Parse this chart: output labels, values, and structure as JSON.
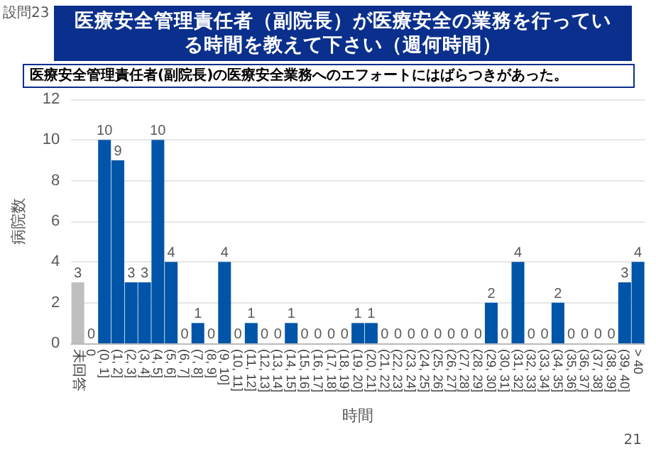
{
  "chart_data": {
    "type": "bar",
    "title": "医療安全管理責任者（副院長）が医療安全の業務を行っている時間を教えて下さい（週何時間）",
    "subtitle": "医療安全管理責任者(副院長)の医療安全業務へのエフォートにはばらつきがあった。",
    "xlabel": "時間",
    "ylabel": "病院数",
    "annotations": [
      "設問23",
      "21"
    ],
    "categories": [
      "未回答",
      "0",
      "(0, 1]",
      "(1, 2]",
      "(2, 3]",
      "(3, 4]",
      "(4, 5]",
      "(5, 6]",
      "(6, 7]",
      "(7, 8]",
      "(8, 9]",
      "(9, 10]",
      "(10, 11]",
      "(11, 12]",
      "(12, 13]",
      "(13, 14]",
      "(14, 15]",
      "(15, 16]",
      "(16, 17]",
      "(17, 18]",
      "(18, 19]",
      "(19, 20]",
      "(20, 21]",
      "(21, 22]",
      "(22, 23]",
      "(23, 24]",
      "(24, 25]",
      "(25, 26]",
      "(26, 27]",
      "(27, 28]",
      "(28, 29]",
      "(29, 30]",
      "(30, 31]",
      "(31, 32]",
      "(32, 33]",
      "(33, 34]",
      "(34, 35]",
      "(35, 36]",
      "(36, 37]",
      "(37, 38]",
      "(38, 39]",
      "(39, 40]",
      "> 40"
    ],
    "values": [
      3,
      0,
      10,
      9,
      3,
      3,
      10,
      4,
      0,
      1,
      0,
      4,
      0,
      1,
      0,
      0,
      1,
      0,
      0,
      0,
      0,
      1,
      1,
      0,
      0,
      0,
      0,
      0,
      0,
      0,
      0,
      2,
      0,
      4,
      0,
      0,
      2,
      0,
      0,
      0,
      0,
      3,
      4
    ],
    "colors": [
      "#bfbfbf",
      "#0055a8",
      "#0055a8",
      "#0055a8",
      "#0055a8",
      "#0055a8",
      "#0055a8",
      "#0055a8",
      "#0055a8",
      "#0055a8",
      "#0055a8",
      "#0055a8",
      "#0055a8",
      "#0055a8",
      "#0055a8",
      "#0055a8",
      "#0055a8",
      "#0055a8",
      "#0055a8",
      "#0055a8",
      "#0055a8",
      "#0055a8",
      "#0055a8",
      "#0055a8",
      "#0055a8",
      "#0055a8",
      "#0055a8",
      "#0055a8",
      "#0055a8",
      "#0055a8",
      "#0055a8",
      "#0055a8",
      "#0055a8",
      "#0055a8",
      "#0055a8",
      "#0055a8",
      "#0055a8",
      "#0055a8",
      "#0055a8",
      "#0055a8",
      "#0055a8",
      "#0055a8",
      "#0055a8"
    ],
    "ylim": [
      0,
      12
    ],
    "yticks": [
      0,
      2,
      4,
      6,
      8,
      10,
      12
    ],
    "grid": "y",
    "data_labels": true
  }
}
